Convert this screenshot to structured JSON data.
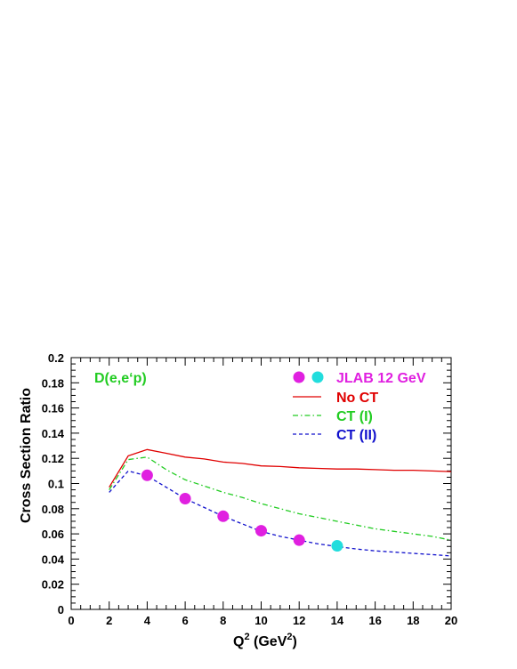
{
  "chart_data": {
    "type": "line",
    "annotation": "D(e,e‘p)",
    "annotation_color": "#22cc22",
    "xlabel_base": "Q",
    "xlabel_sup": "2",
    "xlabel_unit_open": " (GeV",
    "xlabel_unit_sup": "2",
    "xlabel_unit_close": ")",
    "ylabel": "Cross Section Ratio",
    "xlim": [
      0,
      20
    ],
    "ylim": [
      0,
      0.2
    ],
    "x_ticks": [
      0,
      2,
      4,
      6,
      8,
      10,
      12,
      14,
      16,
      18,
      20
    ],
    "x_tick_labels": [
      "0",
      "2",
      "4",
      "6",
      "8",
      "10",
      "12",
      "14",
      "16",
      "18",
      "20"
    ],
    "y_ticks": [
      0,
      0.02,
      0.04,
      0.06,
      0.08,
      0.1,
      0.12,
      0.14,
      0.16,
      0.18,
      0.2
    ],
    "y_tick_labels": [
      "0",
      "0.02",
      "0.04",
      "0.06",
      "0.08",
      "0.1",
      "0.12",
      "0.14",
      "0.16",
      "0.18",
      "0.2"
    ],
    "grid": false,
    "legend_position": "top-right",
    "legend": [
      {
        "label": "JLAB 12 GeV",
        "color": "#e020e0",
        "marker": "circles"
      },
      {
        "label": "No CT",
        "color": "#e00000",
        "line": "solid"
      },
      {
        "label": "CT (I)",
        "color": "#22cc22",
        "line": "dashdot"
      },
      {
        "label": "CT (II)",
        "color": "#1010cc",
        "line": "dashed"
      }
    ],
    "series": [
      {
        "name": "No CT",
        "color": "#e00000",
        "dash": "",
        "x": [
          2,
          3,
          4,
          5,
          6,
          7,
          8,
          9,
          10,
          11,
          12,
          13,
          14,
          15,
          16,
          17,
          18,
          19,
          20
        ],
        "y": [
          0.097,
          0.122,
          0.127,
          0.124,
          0.121,
          0.1195,
          0.117,
          0.116,
          0.114,
          0.1135,
          0.1125,
          0.112,
          0.1115,
          0.1115,
          0.111,
          0.1105,
          0.1105,
          0.11,
          0.1095
        ]
      },
      {
        "name": "CT (I)",
        "color": "#22cc22",
        "dash": "6,3,1.5,3",
        "x": [
          2,
          3,
          4,
          5,
          6,
          7,
          8,
          9,
          10,
          11,
          12,
          13,
          14,
          15,
          16,
          17,
          18,
          19,
          20
        ],
        "y": [
          0.095,
          0.119,
          0.121,
          0.111,
          0.103,
          0.098,
          0.093,
          0.089,
          0.084,
          0.08,
          0.076,
          0.073,
          0.07,
          0.067,
          0.064,
          0.062,
          0.06,
          0.058,
          0.055
        ]
      },
      {
        "name": "CT (II)",
        "color": "#1010cc",
        "dash": "4,3",
        "x": [
          2,
          3,
          4,
          5,
          6,
          7,
          8,
          9,
          10,
          11,
          12,
          13,
          14,
          15,
          16,
          17,
          18,
          19,
          20
        ],
        "y": [
          0.093,
          0.11,
          0.106,
          0.097,
          0.088,
          0.081,
          0.074,
          0.068,
          0.062,
          0.058,
          0.055,
          0.052,
          0.05,
          0.048,
          0.0465,
          0.0455,
          0.0445,
          0.0435,
          0.0425
        ]
      }
    ],
    "points": [
      {
        "x": 4,
        "y": 0.1065,
        "color": "#e020e0"
      },
      {
        "x": 6,
        "y": 0.088,
        "color": "#e020e0"
      },
      {
        "x": 8,
        "y": 0.074,
        "color": "#e020e0"
      },
      {
        "x": 10,
        "y": 0.0625,
        "color": "#e020e0"
      },
      {
        "x": 12,
        "y": 0.055,
        "color": "#e020e0"
      },
      {
        "x": 14,
        "y": 0.0505,
        "color": "#22dddd"
      }
    ],
    "legend_marker_colors": [
      "#e020e0",
      "#22dddd"
    ]
  }
}
